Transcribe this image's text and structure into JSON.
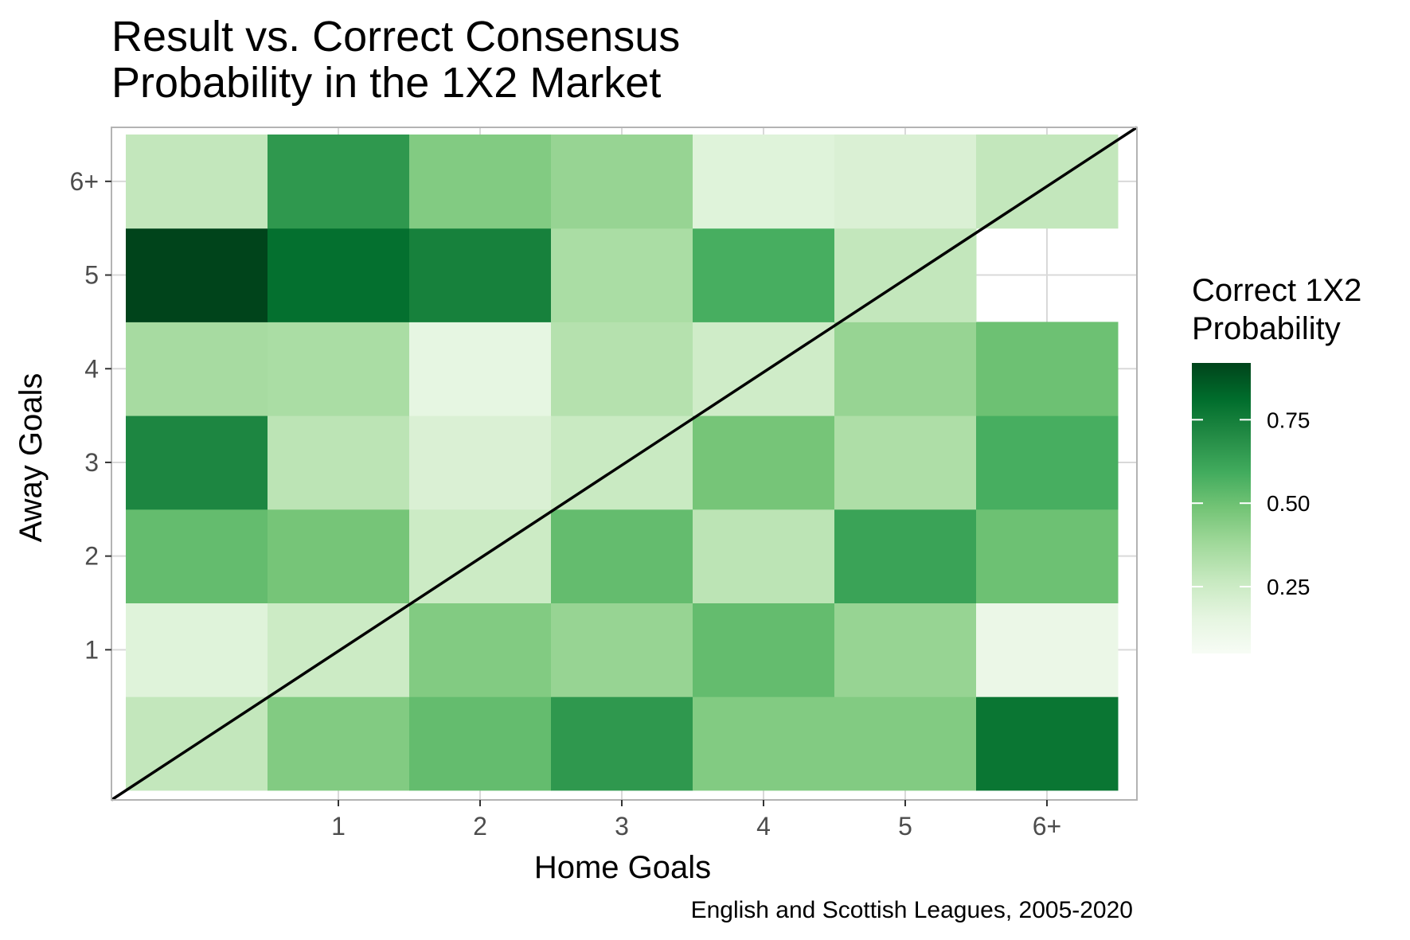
{
  "chart_data": {
    "type": "heatmap",
    "title": "Result vs. Correct Consensus Probability in the 1X2 Market",
    "title_lines": [
      "Result vs. Correct Consensus",
      "Probability in the 1X2 Market"
    ],
    "xlabel": "Home Goals",
    "ylabel": "Away Goals",
    "caption": "English and Scottish Leagues, 2005-2020",
    "x_categories": [
      "0",
      "1",
      "2",
      "3",
      "4",
      "5",
      "6+"
    ],
    "y_categories": [
      "0",
      "1",
      "2",
      "3",
      "4",
      "5",
      "6+"
    ],
    "x_tick_labels": [
      "",
      "1",
      "2",
      "3",
      "4",
      "5",
      "6+"
    ],
    "y_tick_labels": [
      "",
      "1",
      "2",
      "3",
      "4",
      "5",
      "6+"
    ],
    "legend": {
      "title_lines": [
        "Correct 1X2",
        "Probability"
      ],
      "breaks": [
        0.25,
        0.5,
        0.75
      ],
      "break_labels": [
        "0.25",
        "0.50",
        "0.75"
      ],
      "range": [
        0.05,
        0.92
      ],
      "low_color": "#f7fcf5",
      "high_color": "#00441b",
      "placement": "right"
    },
    "diagonal_reference_line": true,
    "values_by_away_goals": [
      [
        0.28,
        0.45,
        0.52,
        0.66,
        0.45,
        0.45,
        0.78
      ],
      [
        0.18,
        0.25,
        0.45,
        0.4,
        0.52,
        0.4,
        0.12
      ],
      [
        0.52,
        0.48,
        0.25,
        0.52,
        0.3,
        0.62,
        0.5
      ],
      [
        0.72,
        0.3,
        0.2,
        0.26,
        0.48,
        0.34,
        0.58
      ],
      [
        0.36,
        0.35,
        0.15,
        0.32,
        0.24,
        0.4,
        0.5
      ],
      [
        0.92,
        0.8,
        0.74,
        0.35,
        0.58,
        0.28,
        null
      ],
      [
        0.28,
        0.66,
        0.45,
        0.4,
        0.18,
        0.2,
        0.28
      ]
    ],
    "grid": true
  },
  "colors": {
    "panel_border": "#b3b3b3",
    "grid": "#d9d9d9",
    "diagonal": "#000000"
  }
}
